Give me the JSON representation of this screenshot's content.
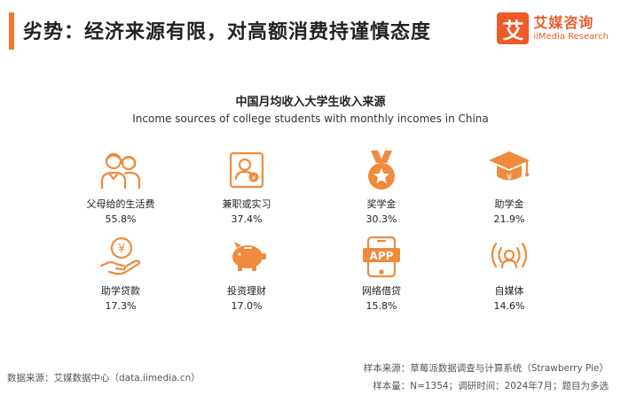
{
  "header": {
    "title": "劣势：经济来源有限，对高额消费持谨慎态度"
  },
  "brand": {
    "logo_char": "艾",
    "name_cn": "艾媒咨询",
    "name_en": "iiMedia Research"
  },
  "chart_data": {
    "type": "table",
    "title": "中国月均收入大学生收入来源",
    "subtitle": "Income sources of college students with monthly incomes in China",
    "unit": "%",
    "items": [
      {
        "label": "父母给的生活费",
        "value": 55.8,
        "value_text": "55.8%",
        "icon": "parents-icon"
      },
      {
        "label": "兼职或实习",
        "value": 37.4,
        "value_text": "37.4%",
        "icon": "id-badge-icon"
      },
      {
        "label": "奖学金",
        "value": 30.3,
        "value_text": "30.3%",
        "icon": "medal-icon"
      },
      {
        "label": "助学金",
        "value": 21.9,
        "value_text": "21.9%",
        "icon": "graduation-cap-icon"
      },
      {
        "label": "助学贷款",
        "value": 17.3,
        "value_text": "17.3%",
        "icon": "hand-coin-icon"
      },
      {
        "label": "投资理财",
        "value": 17.0,
        "value_text": "17.0%",
        "icon": "piggy-bank-icon"
      },
      {
        "label": "网络借贷",
        "value": 15.8,
        "value_text": "15.8%",
        "icon": "app-phone-icon"
      },
      {
        "label": "自媒体",
        "value": 14.6,
        "value_text": "14.6%",
        "icon": "broadcaster-icon"
      }
    ]
  },
  "footer": {
    "data_source": "数据来源：艾媒数据中心（data.iimedia.cn）",
    "sample_source": "样本来源：草莓派数据调查与计算系统（Strawberry Pie）",
    "sample_info": "样本量：N=1354；调研时间：2024年7月；题目为多选"
  },
  "colors": {
    "accent": "#f07a2b",
    "icon": "#f08a3c",
    "brand": "#f05a28"
  }
}
